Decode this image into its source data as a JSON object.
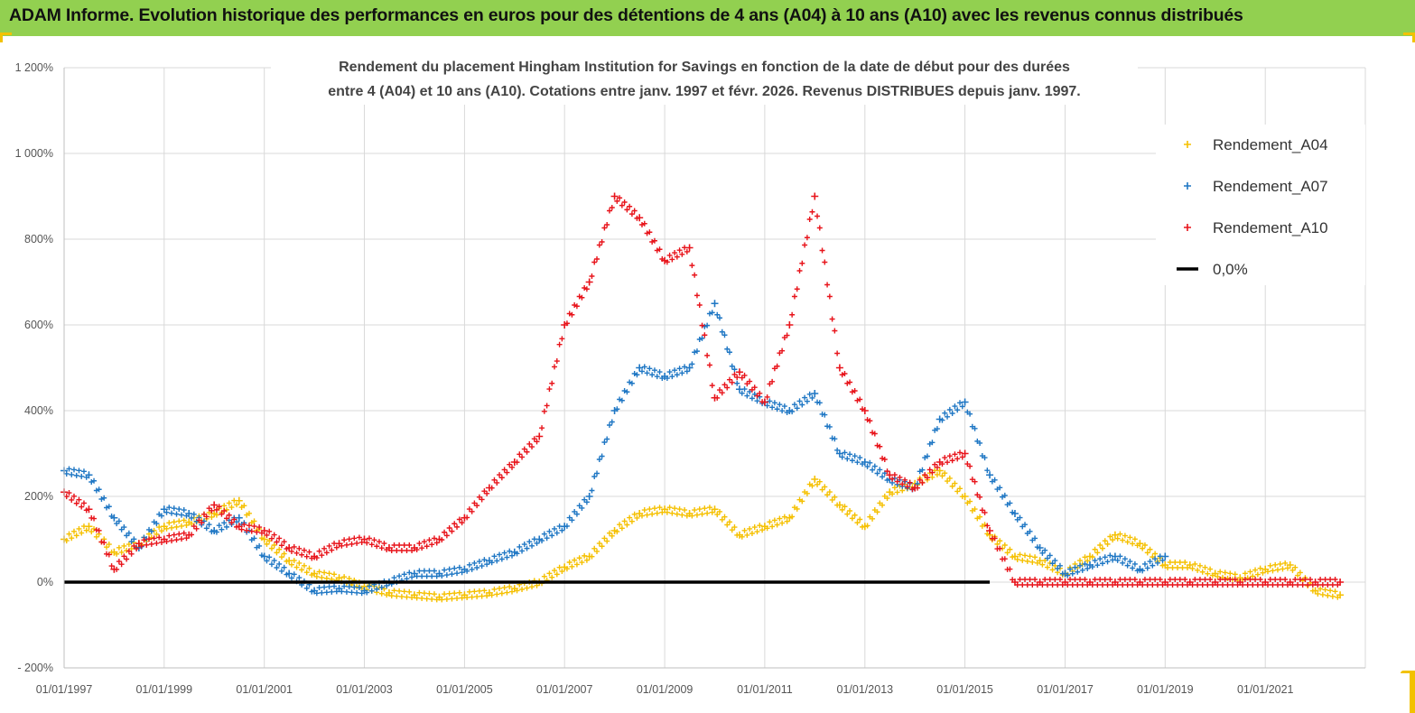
{
  "banner": {
    "title": "ADAM Informe. Evolution historique des performances en euros pour des détentions de 4 ans (A04) à 10 ans (A10) avec les revenus connus distribués",
    "background_color": "#92d050"
  },
  "chart_data": {
    "type": "scatter",
    "title_lines": [
      "Rendement du placement Hingham Institution for Savings en fonction de la date de début pour des durées",
      "entre 4 (A04) et 10 ans (A10).  Cotations entre janv. 1997 et févr. 2026. Revenus DISTRIBUES depuis janv. 1997."
    ],
    "xlabel": "",
    "ylabel": "",
    "x_range": [
      "1997-01-01",
      "2023-01-01"
    ],
    "ylim": [
      -200,
      1200
    ],
    "y_ticks": [
      -200,
      0,
      200,
      400,
      600,
      800,
      1000,
      1200
    ],
    "y_tick_labels": [
      "- 200%",
      "0%",
      "200%",
      "400%",
      "600%",
      "800%",
      "1 000%",
      "1 200%"
    ],
    "x_ticks": [
      "1997-01-01",
      "1999-01-01",
      "2001-01-01",
      "2003-01-01",
      "2005-01-01",
      "2007-01-01",
      "2009-01-01",
      "2011-01-01",
      "2013-01-01",
      "2015-01-01",
      "2017-01-01",
      "2019-01-01",
      "2021-01-01"
    ],
    "x_tick_labels": [
      "01/01/1997",
      "01/01/1999",
      "01/01/2001",
      "01/01/2003",
      "01/01/2005",
      "01/01/2007",
      "01/01/2009",
      "01/01/2011",
      "01/01/2013",
      "01/01/2015",
      "01/01/2017",
      "01/01/2019",
      "01/01/2021"
    ],
    "grid": true,
    "legend_position": "top-right",
    "series": [
      {
        "name": "Rendement_A04",
        "color": "#f5c000",
        "marker": "plus",
        "x": [
          "1997-01-01",
          "1997-07-01",
          "1998-01-01",
          "1998-07-01",
          "1999-01-01",
          "1999-07-01",
          "2000-01-01",
          "2000-07-01",
          "2001-01-01",
          "2001-07-01",
          "2002-01-01",
          "2002-07-01",
          "2003-01-01",
          "2003-07-01",
          "2004-01-01",
          "2004-07-01",
          "2005-01-01",
          "2005-07-01",
          "2006-01-01",
          "2006-07-01",
          "2007-01-01",
          "2007-07-01",
          "2008-01-01",
          "2008-07-01",
          "2009-01-01",
          "2009-07-01",
          "2010-01-01",
          "2010-07-01",
          "2011-01-01",
          "2011-07-01",
          "2012-01-01",
          "2012-07-01",
          "2013-01-01",
          "2013-07-01",
          "2014-01-01",
          "2014-07-01",
          "2015-01-01",
          "2015-07-01",
          "2016-01-01",
          "2016-07-01",
          "2017-01-01",
          "2017-07-01",
          "2018-01-01",
          "2018-07-01",
          "2019-01-01",
          "2019-07-01",
          "2020-01-01",
          "2020-07-01",
          "2021-01-01",
          "2021-07-01",
          "2022-01-01",
          "2022-07-01"
        ],
        "y": [
          100,
          130,
          70,
          90,
          130,
          140,
          160,
          190,
          100,
          50,
          20,
          10,
          -10,
          -25,
          -30,
          -35,
          -30,
          -25,
          -15,
          0,
          35,
          60,
          120,
          160,
          170,
          160,
          170,
          110,
          130,
          150,
          240,
          180,
          130,
          210,
          230,
          260,
          200,
          110,
          60,
          50,
          20,
          60,
          110,
          90,
          40,
          40,
          20,
          10,
          30,
          40,
          -20,
          -30
        ]
      },
      {
        "name": "Rendement_A07",
        "color": "#1f77c4",
        "marker": "plus",
        "x": [
          "1997-01-01",
          "1997-07-01",
          "1998-01-01",
          "1998-07-01",
          "1999-01-01",
          "1999-07-01",
          "2000-01-01",
          "2000-07-01",
          "2001-01-01",
          "2001-07-01",
          "2002-01-01",
          "2002-07-01",
          "2003-01-01",
          "2003-07-01",
          "2004-01-01",
          "2004-07-01",
          "2005-01-01",
          "2005-07-01",
          "2006-01-01",
          "2006-07-01",
          "2007-01-01",
          "2007-07-01",
          "2008-01-01",
          "2008-07-01",
          "2009-01-01",
          "2009-07-01",
          "2010-01-01",
          "2010-07-01",
          "2011-01-01",
          "2011-07-01",
          "2012-01-01",
          "2012-07-01",
          "2013-01-01",
          "2013-07-01",
          "2014-01-01",
          "2014-07-01",
          "2015-01-01",
          "2015-07-01",
          "2016-01-01",
          "2016-07-01",
          "2017-01-01",
          "2017-07-01",
          "2018-01-01",
          "2018-07-01",
          "2019-01-01"
        ],
        "y": [
          260,
          250,
          150,
          80,
          170,
          160,
          120,
          150,
          60,
          20,
          -20,
          -15,
          -20,
          0,
          20,
          20,
          30,
          50,
          70,
          100,
          130,
          200,
          400,
          500,
          480,
          500,
          650,
          450,
          420,
          400,
          440,
          300,
          280,
          240,
          220,
          380,
          420,
          250,
          160,
          80,
          20,
          40,
          60,
          30,
          60
        ]
      },
      {
        "name": "Rendement_A10",
        "color": "#e8141b",
        "marker": "plus",
        "x": [
          "1997-01-01",
          "1997-07-01",
          "1998-01-01",
          "1998-07-01",
          "1999-01-01",
          "1999-07-01",
          "2000-01-01",
          "2000-07-01",
          "2001-01-01",
          "2001-07-01",
          "2002-01-01",
          "2002-07-01",
          "2003-01-01",
          "2003-07-01",
          "2004-01-01",
          "2004-07-01",
          "2005-01-01",
          "2005-07-01",
          "2006-01-01",
          "2006-07-01",
          "2007-01-01",
          "2007-07-01",
          "2008-01-01",
          "2008-07-01",
          "2009-01-01",
          "2009-07-01",
          "2010-01-01",
          "2010-07-01",
          "2011-01-01",
          "2011-07-01",
          "2012-01-01",
          "2012-07-01",
          "2013-01-01",
          "2013-07-01",
          "2014-01-01",
          "2014-07-01",
          "2015-01-01",
          "2015-07-01",
          "2016-01-01",
          "2016-07-01",
          "2017-01-01",
          "2017-07-01",
          "2018-01-01",
          "2018-07-01",
          "2019-01-01",
          "2019-07-01",
          "2020-01-01",
          "2020-07-01",
          "2021-01-01",
          "2021-07-01",
          "2022-01-01",
          "2022-07-01"
        ],
        "y": [
          210,
          170,
          30,
          90,
          100,
          110,
          180,
          130,
          120,
          80,
          60,
          90,
          100,
          80,
          80,
          100,
          150,
          220,
          280,
          340,
          600,
          700,
          900,
          850,
          750,
          780,
          430,
          490,
          420,
          600,
          900,
          500,
          400,
          250,
          220,
          280,
          300,
          120,
          0,
          0,
          0,
          0,
          0,
          0,
          0,
          0,
          0,
          0,
          0,
          0,
          0,
          0
        ]
      },
      {
        "name": "0,0%",
        "color": "#000000",
        "marker": "line",
        "x": [
          "1997-01-01",
          "2015-07-01"
        ],
        "y": [
          0,
          0
        ]
      }
    ]
  }
}
